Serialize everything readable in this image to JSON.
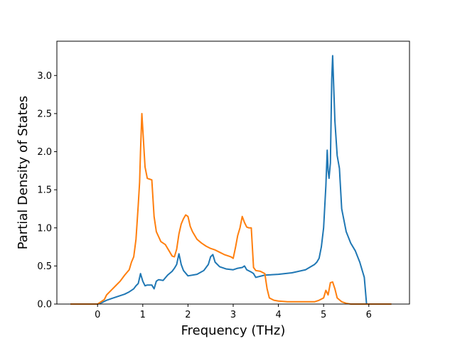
{
  "chart_data": {
    "type": "line",
    "xlabel": "Frequency (THz)",
    "ylabel": "Partial Density of States",
    "xlim": [
      -0.9,
      6.9
    ],
    "ylim": [
      0.0,
      3.45
    ],
    "xticks": [
      0,
      1,
      2,
      3,
      4,
      5,
      6
    ],
    "yticks": [
      0.0,
      0.5,
      1.0,
      1.5,
      2.0,
      2.5,
      3.0
    ],
    "xtick_labels": [
      "0",
      "1",
      "2",
      "3",
      "4",
      "5",
      "6"
    ],
    "ytick_labels": [
      "0.0",
      "0.5",
      "1.0",
      "1.5",
      "2.0",
      "2.5",
      "3.0"
    ],
    "grid": false,
    "legend": false,
    "series": [
      {
        "color": "#1f77b4",
        "x": [
          -0.6,
          0.0,
          0.1,
          0.2,
          0.3,
          0.4,
          0.5,
          0.6,
          0.7,
          0.8,
          0.85,
          0.9,
          0.95,
          1.0,
          1.05,
          1.1,
          1.2,
          1.25,
          1.3,
          1.35,
          1.45,
          1.55,
          1.65,
          1.7,
          1.75,
          1.8,
          1.85,
          1.9,
          2.0,
          2.2,
          2.35,
          2.45,
          2.5,
          2.55,
          2.6,
          2.7,
          2.85,
          3.0,
          3.1,
          3.2,
          3.25,
          3.3,
          3.4,
          3.45,
          3.5,
          3.7,
          4.0,
          4.3,
          4.6,
          4.8,
          4.85,
          4.9,
          4.95,
          5.0,
          5.05,
          5.08,
          5.1,
          5.12,
          5.15,
          5.18,
          5.2,
          5.25,
          5.3,
          5.35,
          5.4,
          5.5,
          5.6,
          5.7,
          5.8,
          5.9,
          5.95,
          6.5
        ],
        "y": [
          0.0,
          0.0,
          0.02,
          0.05,
          0.07,
          0.09,
          0.11,
          0.13,
          0.16,
          0.2,
          0.24,
          0.27,
          0.4,
          0.3,
          0.24,
          0.25,
          0.25,
          0.2,
          0.3,
          0.32,
          0.31,
          0.38,
          0.43,
          0.47,
          0.52,
          0.66,
          0.52,
          0.44,
          0.37,
          0.39,
          0.44,
          0.52,
          0.62,
          0.65,
          0.55,
          0.49,
          0.46,
          0.45,
          0.47,
          0.48,
          0.5,
          0.45,
          0.42,
          0.4,
          0.35,
          0.38,
          0.39,
          0.41,
          0.45,
          0.52,
          0.55,
          0.6,
          0.75,
          1.0,
          1.55,
          2.02,
          1.75,
          1.65,
          1.85,
          2.95,
          3.26,
          2.4,
          1.95,
          1.78,
          1.25,
          0.95,
          0.8,
          0.7,
          0.55,
          0.35,
          0.0,
          0.0
        ]
      },
      {
        "color": "#ff7f0e",
        "x": [
          -0.6,
          0.0,
          0.05,
          0.1,
          0.15,
          0.2,
          0.3,
          0.4,
          0.5,
          0.6,
          0.7,
          0.75,
          0.8,
          0.85,
          0.9,
          0.93,
          0.95,
          0.98,
          1.0,
          1.05,
          1.1,
          1.15,
          1.2,
          1.25,
          1.3,
          1.4,
          1.5,
          1.6,
          1.65,
          1.7,
          1.75,
          1.8,
          1.85,
          1.9,
          1.95,
          2.0,
          2.05,
          2.1,
          2.2,
          2.3,
          2.4,
          2.5,
          2.6,
          2.7,
          2.8,
          2.9,
          2.95,
          3.0,
          3.05,
          3.1,
          3.15,
          3.2,
          3.25,
          3.3,
          3.35,
          3.4,
          3.45,
          3.5,
          3.6,
          3.7,
          3.75,
          3.8,
          3.9,
          4.0,
          4.2,
          4.5,
          4.8,
          4.9,
          5.0,
          5.05,
          5.1,
          5.15,
          5.2,
          5.25,
          5.3,
          5.4,
          5.5,
          5.6,
          5.8,
          6.0,
          6.5
        ],
        "y": [
          0.0,
          0.0,
          0.02,
          0.04,
          0.06,
          0.12,
          0.18,
          0.24,
          0.3,
          0.38,
          0.45,
          0.55,
          0.62,
          0.85,
          1.3,
          1.6,
          2.0,
          2.5,
          2.3,
          1.8,
          1.65,
          1.64,
          1.63,
          1.15,
          0.95,
          0.82,
          0.78,
          0.68,
          0.63,
          0.62,
          0.72,
          0.92,
          1.05,
          1.12,
          1.17,
          1.15,
          1.02,
          0.95,
          0.85,
          0.8,
          0.76,
          0.73,
          0.71,
          0.68,
          0.65,
          0.63,
          0.62,
          0.6,
          0.74,
          0.9,
          1.0,
          1.15,
          1.07,
          1.01,
          1.0,
          1.0,
          0.48,
          0.44,
          0.43,
          0.4,
          0.2,
          0.08,
          0.05,
          0.04,
          0.03,
          0.03,
          0.03,
          0.05,
          0.08,
          0.18,
          0.12,
          0.28,
          0.29,
          0.2,
          0.08,
          0.03,
          0.01,
          0.0,
          0.0,
          0.0,
          0.0
        ]
      }
    ]
  }
}
